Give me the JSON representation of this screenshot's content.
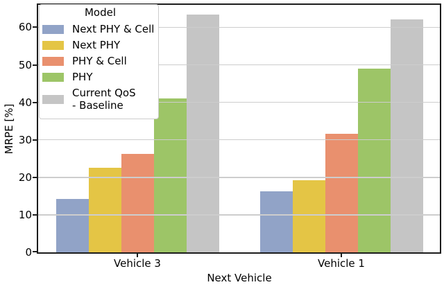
{
  "chart_data": {
    "type": "bar",
    "title": "",
    "xlabel": "Next Vehicle",
    "ylabel": "MRPE [%]",
    "legend_title": "Model",
    "legend_position": "upper left",
    "grid": true,
    "ylim": [
      0,
      66
    ],
    "yticks": [
      0,
      10,
      20,
      30,
      40,
      50,
      60
    ],
    "categories": [
      "Vehicle 3",
      "Vehicle 1"
    ],
    "series": [
      {
        "name": "Next PHY & Cell",
        "label_lines": [
          "Next PHY & Cell"
        ],
        "color": "#91a3c7",
        "values": [
          14.3,
          16.3
        ]
      },
      {
        "name": "Next PHY",
        "label_lines": [
          "Next PHY"
        ],
        "color": "#e4c545",
        "values": [
          22.5,
          19.2
        ]
      },
      {
        "name": "PHY & Cell",
        "label_lines": [
          "PHY & Cell"
        ],
        "color": "#e9906e",
        "values": [
          26.2,
          31.7
        ]
      },
      {
        "name": "PHY",
        "label_lines": [
          "PHY"
        ],
        "color": "#9dc567",
        "values": [
          41.1,
          48.9
        ]
      },
      {
        "name": "Current QoS - Baseline",
        "label_lines": [
          "Current QoS",
          " - Baseline"
        ],
        "color": "#c5c5c5",
        "values": [
          63.5,
          62.2
        ]
      }
    ]
  }
}
